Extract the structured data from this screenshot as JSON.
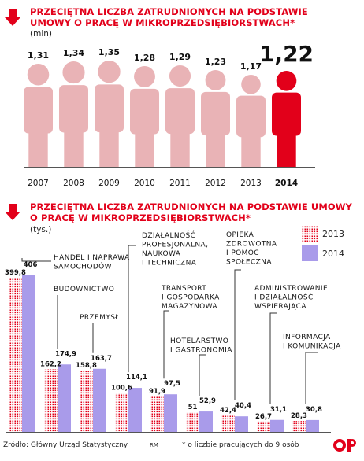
{
  "colors": {
    "accent": "#e2001a",
    "figure_past": "#e9b3b6",
    "figure_current": "#e2001a",
    "bar_2014": "#a99bea",
    "bar_2013_dots": "#e2001a"
  },
  "icons": {
    "arrow": "down-arrow-icon",
    "logo": "publisher-logo-icon"
  },
  "top_chart": {
    "title_line1": "PRZECIĘTNA LICZBA ZATRUDNIONYCH NA PODSTAWIE",
    "title_line2": "UMOWY O PRACĘ W MIKROPRZEDSIĘBIORSTWACH*",
    "unit": "(mln)"
  },
  "bottom_chart": {
    "title_line1": "PRZECIĘTNA LICZBA ZATRUDNIONYCH NA PODSTAWIE UMOWY",
    "title_line2": "O PRACĘ W MIKROPRZEDSIĘBIORSTWACH*",
    "unit": "(tys.)",
    "legend": {
      "y2013": "2013",
      "y2014": "2014"
    }
  },
  "footer": {
    "source": "Źródło: Główny Urząd Statystyczny",
    "credit": "RM",
    "note": "* o liczbie pracujących do 9 osób"
  },
  "chart_data": [
    {
      "type": "bar",
      "title": "PRZECIĘTNA LICZBA ZATRUDNIONYCH NA PODSTAWIE UMOWY O PRACĘ W MIKROPRZEDSIĘBIORSTWACH*",
      "ylabel": "(mln)",
      "categories": [
        "2007",
        "2008",
        "2009",
        "2010",
        "2011",
        "2012",
        "2013",
        "2014"
      ],
      "values": [
        1.31,
        1.34,
        1.35,
        1.28,
        1.29,
        1.23,
        1.17,
        1.22
      ],
      "value_labels": [
        "1,31",
        "1,34",
        "1,35",
        "1,28",
        "1,29",
        "1,23",
        "1,17",
        "1,22"
      ],
      "highlight": "2014"
    },
    {
      "type": "bar",
      "title": "PRZECIĘTNA LICZBA ZATRUDNIONYCH NA PODSTAWIE UMOWY O PRACĘ W MIKROPRZEDSIĘBIORSTWACH*",
      "ylabel": "(tys.)",
      "categories": [
        [
          "HANDEL I NAPRAWA",
          "SAMOCHODÓW"
        ],
        [
          "BUDOWNICTWO"
        ],
        [
          "PRZEMYSŁ"
        ],
        [
          "DZIAŁALNOŚĆ",
          "PROFESJONALNA,",
          "NAUKOWA",
          "I TECHNICZNA"
        ],
        [
          "TRANSPORT",
          "I GOSPODARKA",
          "MAGAZYNOWA"
        ],
        [
          "HOTELARSTWO",
          "I GASTRONOMIA"
        ],
        [
          "OPIEKA",
          "ZDROWOTNA",
          "I POMOC",
          "SPOŁECZNA"
        ],
        [
          "ADMINISTROWANIE",
          "I DZIAŁALNOŚĆ",
          "WSPIERAJĄCA"
        ],
        [
          "INFORMACJA",
          "I KOMUNIKACJA"
        ]
      ],
      "series": [
        {
          "name": "2013",
          "values": [
            399.8,
            162.2,
            158.8,
            100.6,
            91.9,
            51,
            42.4,
            26.7,
            28.3
          ],
          "labels": [
            "399,8",
            "162,2",
            "158,8",
            "100,6",
            "91,9",
            "51",
            "42,4",
            "26,7",
            "28,3"
          ]
        },
        {
          "name": "2014",
          "values": [
            406,
            174.9,
            163.7,
            114.1,
            97.5,
            52.9,
            40.4,
            31.1,
            30.8
          ],
          "labels": [
            "406",
            "174,9",
            "163,7",
            "114,1",
            "97,5",
            "52,9",
            "40,4",
            "31,1",
            "30,8"
          ]
        }
      ],
      "legend": "top-right"
    }
  ]
}
